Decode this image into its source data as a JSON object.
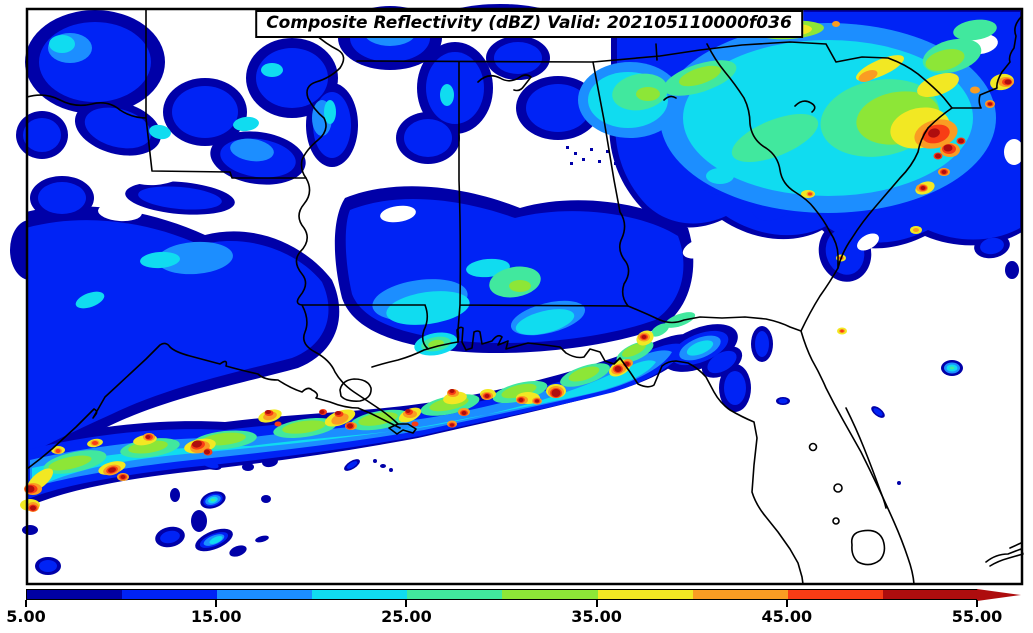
{
  "title": {
    "text": "Composite Reflectivity (dBZ) Valid: 202105110000f036",
    "field": "Composite Reflectivity",
    "units": "dBZ",
    "valid": "202105110000f036"
  },
  "colorbar": {
    "min": 5,
    "max": 55,
    "tick_labels": [
      "5.00",
      "15.00",
      "25.00",
      "35.00",
      "45.00",
      "55.00"
    ],
    "tick_values": [
      5,
      15,
      25,
      35,
      45,
      55
    ],
    "segments": [
      {
        "from": 5,
        "to": 10,
        "color": "#0000A3"
      },
      {
        "from": 10,
        "to": 15,
        "color": "#0023F5"
      },
      {
        "from": 15,
        "to": 20,
        "color": "#1C8EFF"
      },
      {
        "from": 20,
        "to": 25,
        "color": "#10DCF0"
      },
      {
        "from": 25,
        "to": 30,
        "color": "#41E89E"
      },
      {
        "from": 30,
        "to": 35,
        "color": "#8DE637"
      },
      {
        "from": 35,
        "to": 40,
        "color": "#F2E823"
      },
      {
        "from": 40,
        "to": 45,
        "color": "#FA9C23"
      },
      {
        "from": 45,
        "to": 50,
        "color": "#F83C15"
      },
      {
        "from": 50,
        "to": 55,
        "color": "#AE0D0E"
      }
    ],
    "arrow_color": "#AE0D0E"
  },
  "map": {
    "background_color": "#FFFFFF",
    "border_color": "#000000"
  }
}
